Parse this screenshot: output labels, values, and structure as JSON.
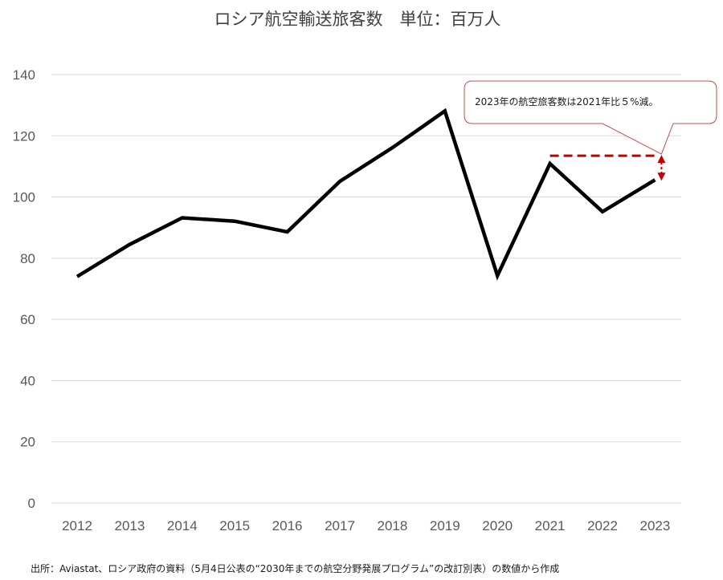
{
  "chart_data": {
    "type": "line",
    "title": "ロシア航空輸送旅客数　単位：百万人",
    "xlabel": "",
    "ylabel": "",
    "categories": [
      "2012",
      "2013",
      "2014",
      "2015",
      "2016",
      "2017",
      "2018",
      "2019",
      "2020",
      "2021",
      "2022",
      "2023"
    ],
    "series": [
      {
        "values": [
          74,
          84.5,
          93.2,
          92.1,
          88.6,
          105.1,
          116.1,
          128.1,
          74.3,
          110.9,
          95.2,
          105.6
        ]
      }
    ],
    "ylim": [
      0,
      140
    ],
    "yticks": [
      0,
      20,
      40,
      60,
      80,
      100,
      120,
      140
    ],
    "ytick_labels": [
      "0",
      "20",
      "40",
      "60",
      "80",
      "100",
      "120",
      "140"
    ],
    "grid": true,
    "legend": "none",
    "annotation": {
      "text": "2023年の航空旅客数は2021年比５%減。",
      "reference_value": 113.5,
      "from_category": "2021",
      "to_category": "2023"
    },
    "colors": {
      "series": "#000000",
      "annotation": "#c00000",
      "grid": "#d9d9d9",
      "callout_border": "#c0504d"
    }
  },
  "source_note": "出所：Aviastat、ロシア政府の資料（5月4日公表の“2030年までの航空分野発展プログラム”の改訂別表）の数値から作成"
}
